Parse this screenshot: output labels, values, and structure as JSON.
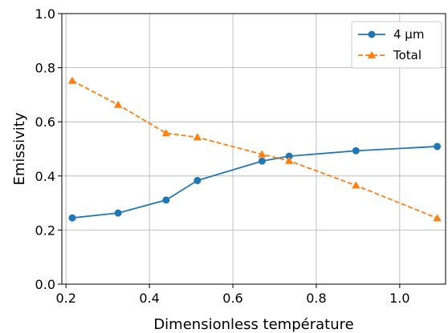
{
  "chart_data": {
    "type": "line",
    "title": "",
    "xlabel": "Dimensionless température",
    "ylabel": "Emissivity",
    "xlim": [
      0.19,
      1.11
    ],
    "ylim": [
      0.0,
      1.0
    ],
    "xticks": [
      "0.2",
      "0.4",
      "0.6",
      "0.8",
      "1.0"
    ],
    "xtick_values": [
      0.2,
      0.4,
      0.6,
      0.8,
      1.0
    ],
    "yticks": [
      "0.0",
      "0.2",
      "0.4",
      "0.6",
      "0.8",
      "1.0"
    ],
    "ytick_values": [
      0.0,
      0.2,
      0.4,
      0.6,
      0.8,
      1.0
    ],
    "grid": true,
    "legend_position": "top-right",
    "series": [
      {
        "name": "4 µm",
        "color": "#1f77b4",
        "linestyle": "solid",
        "marker": "circle",
        "x": [
          0.215,
          0.325,
          0.44,
          0.515,
          0.67,
          0.735,
          0.895,
          1.09
        ],
        "y": [
          0.245,
          0.263,
          0.311,
          0.383,
          0.455,
          0.473,
          0.493,
          0.509
        ]
      },
      {
        "name": "Total",
        "color": "#ff7f0e",
        "linestyle": "dashed",
        "marker": "triangle",
        "x": [
          0.215,
          0.325,
          0.44,
          0.515,
          0.67,
          0.735,
          0.895,
          1.09
        ],
        "y": [
          0.752,
          0.663,
          0.558,
          0.543,
          0.48,
          0.456,
          0.365,
          0.244
        ]
      }
    ]
  }
}
